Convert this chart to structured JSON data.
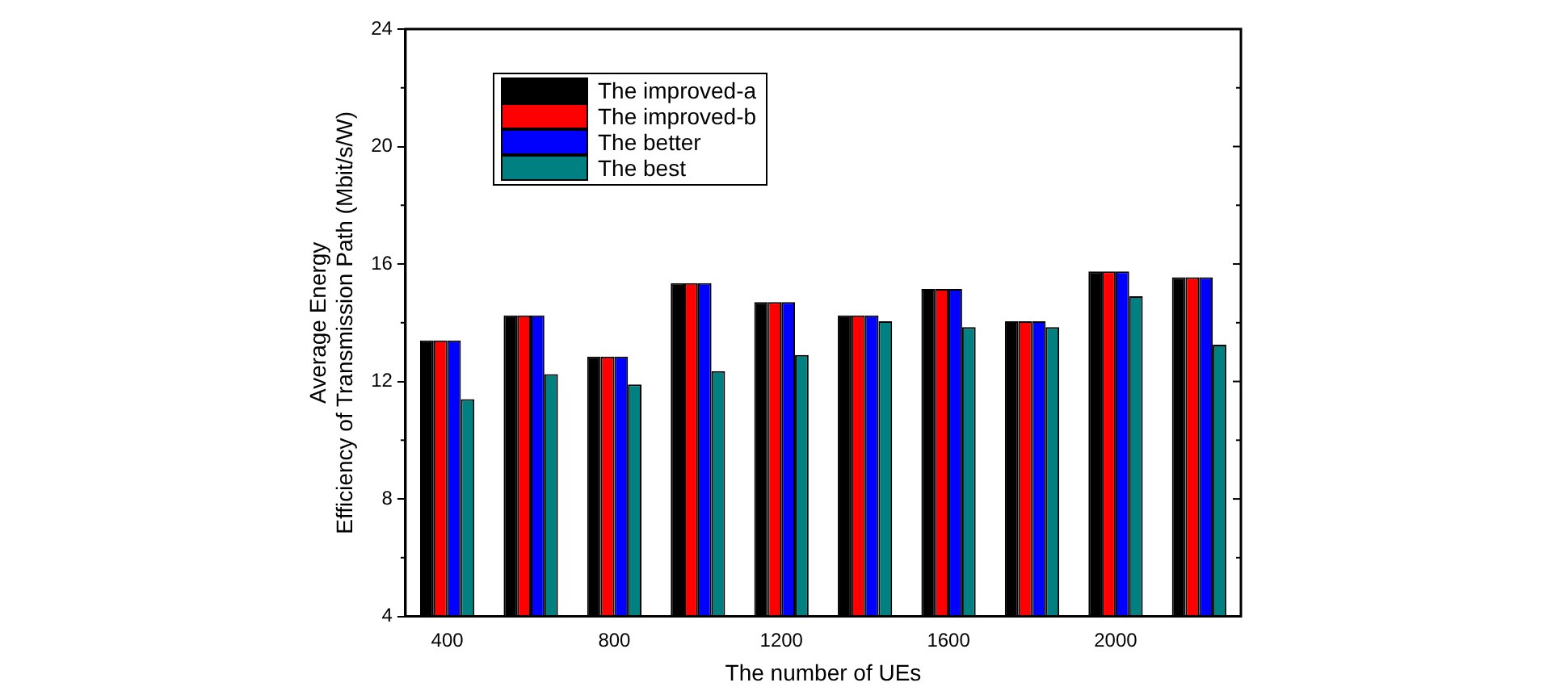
{
  "chart_data": {
    "type": "bar",
    "xlabel": "The number of UEs",
    "ylabel": "Average Energy\nEfficiency of Transmission Path (Mbit/s/W)",
    "categories": [
      "400",
      null,
      "800",
      null,
      "1200",
      null,
      "1600",
      null,
      "2000",
      null
    ],
    "series": [
      {
        "name": "The improved-a",
        "color": "#000000",
        "values": [
          13.4,
          14.25,
          12.85,
          15.35,
          14.7,
          14.25,
          15.15,
          14.05,
          15.75,
          15.55
        ]
      },
      {
        "name": "The improved-b",
        "color": "#ff0000",
        "values": [
          13.4,
          14.25,
          12.85,
          15.35,
          14.7,
          14.25,
          15.15,
          14.05,
          15.75,
          15.55
        ]
      },
      {
        "name": "The better",
        "color": "#0000ff",
        "values": [
          13.4,
          14.25,
          12.85,
          15.35,
          14.7,
          14.25,
          15.15,
          14.05,
          15.75,
          15.55
        ]
      },
      {
        "name": "The best",
        "color": "#008080",
        "values": [
          11.4,
          12.25,
          11.9,
          12.35,
          12.9,
          14.05,
          13.85,
          13.85,
          14.9,
          13.25
        ]
      }
    ],
    "ylim": [
      4,
      24
    ],
    "yticks": [
      4,
      8,
      12,
      16,
      20,
      24
    ],
    "grid": false,
    "legend": "top left"
  }
}
